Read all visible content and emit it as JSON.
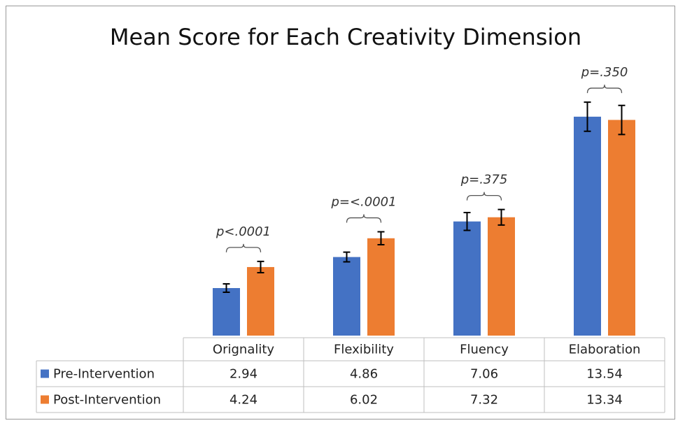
{
  "chart_data": {
    "type": "bar",
    "title": "Mean Score for Each Creativity Dimension",
    "categories": [
      "Orignality",
      "Flexibility",
      "Fluency",
      "Elaboration"
    ],
    "series": [
      {
        "name": "Pre-Intervention",
        "color": "#4472c4",
        "values": [
          2.94,
          4.86,
          7.06,
          13.54
        ],
        "errors": [
          0.26,
          0.3,
          0.55,
          0.9
        ]
      },
      {
        "name": "Post-Intervention",
        "color": "#ed7d31",
        "values": [
          4.24,
          6.02,
          7.32,
          13.34
        ],
        "errors": [
          0.35,
          0.4,
          0.48,
          0.9
        ]
      }
    ],
    "annotations": [
      "p<.0001",
      "p=<.0001",
      "p=.375",
      "p=.350"
    ],
    "ylim": [
      0,
      16
    ]
  }
}
